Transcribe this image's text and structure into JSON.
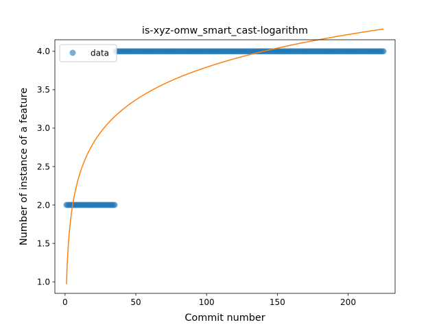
{
  "chart_data": {
    "type": "scatter",
    "title": "is-xyz-omw_smart_cast-logarithm",
    "xlabel": "Commit number",
    "ylabel": "Number of instance of a feature",
    "xlim": [
      -7.2,
      233.2
    ],
    "ylim": [
      0.85,
      4.15
    ],
    "xticks": [
      0,
      50,
      100,
      150,
      200
    ],
    "yticks": [
      1.0,
      1.5,
      2.0,
      2.5,
      3.0,
      3.5,
      4.0
    ],
    "xtick_labels": [
      "0",
      "50",
      "100",
      "150",
      "200"
    ],
    "ytick_labels": [
      "1.0",
      "1.5",
      "2.0",
      "2.5",
      "3.0",
      "3.5",
      "4.0"
    ],
    "grid": false,
    "legend": {
      "position": "top-left",
      "entries": [
        "data"
      ]
    },
    "series": [
      {
        "name": "data",
        "kind": "scatter",
        "color": "#1f77b4",
        "alpha": 0.6,
        "segments": [
          {
            "x_start": 1,
            "x_end": 35,
            "y": 2.0
          },
          {
            "x_start": 36,
            "x_end": 225,
            "y": 4.0
          }
        ]
      },
      {
        "kind": "line",
        "color": "#ff7f0e",
        "model": "y = a + b*ln(x)",
        "a": 0.97,
        "b": 0.613,
        "x_range": [
          1,
          225
        ]
      }
    ]
  }
}
